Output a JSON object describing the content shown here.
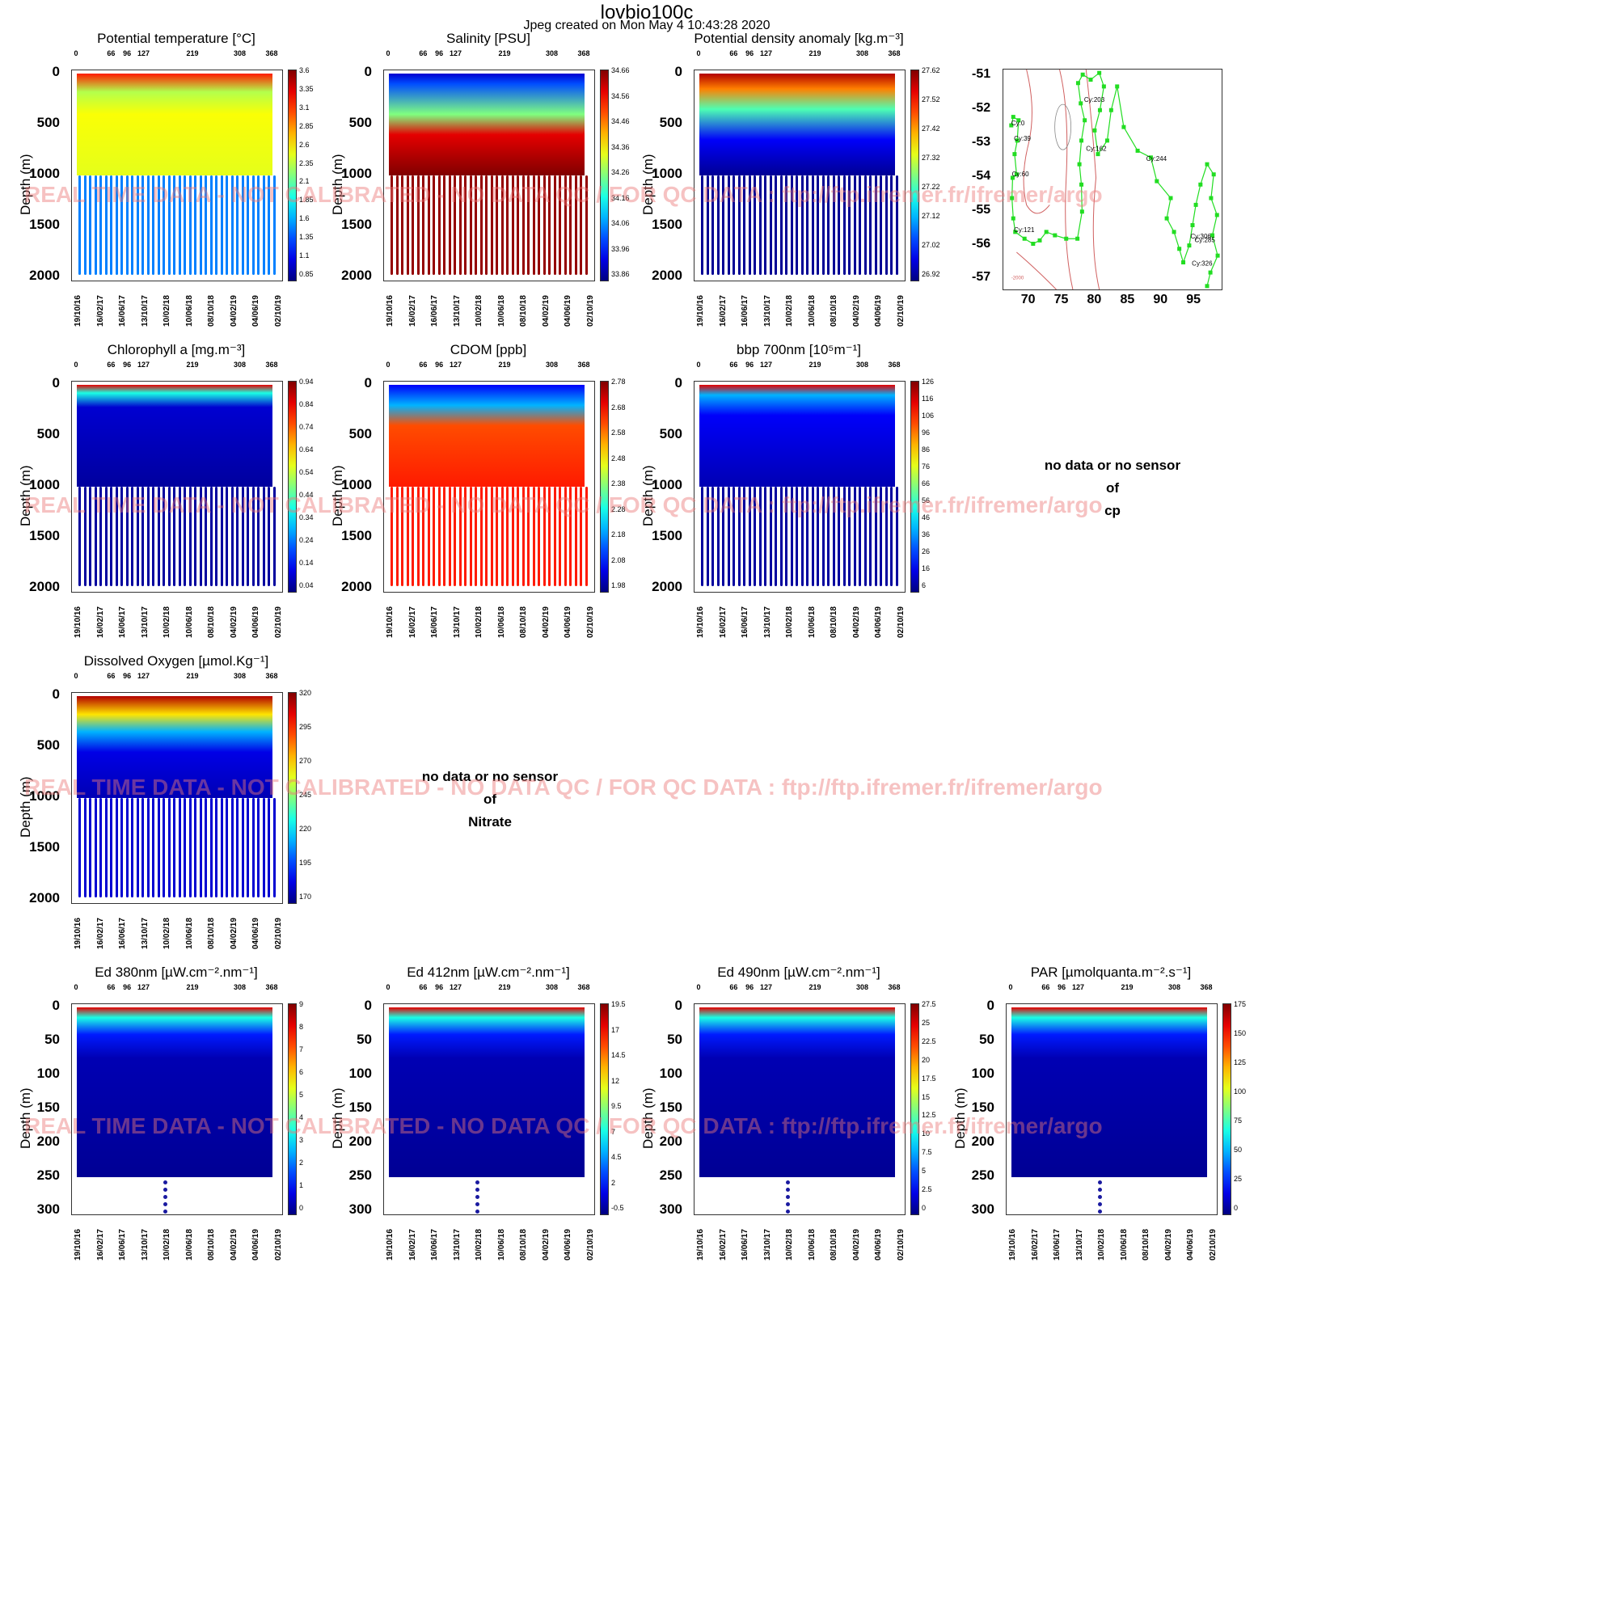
{
  "header": {
    "title": "lovbio100c",
    "subtitle": "Jpeg created on  Mon May  4 10:43:28 2020"
  },
  "watermark": "REAL TIME DATA - NOT CALIBRATED - NO DATA QC   /  FOR QC DATA : ftp://ftp.ifremer.fr/ifremer/argo",
  "axes": {
    "ylabel": "Depth (m)",
    "cycle_ticks": [
      "0",
      "66",
      "96",
      "127",
      "219",
      "308",
      "368"
    ],
    "date_ticks": [
      "19/10/16",
      "16/02/17",
      "16/06/17",
      "13/10/17",
      "10/02/18",
      "10/06/18",
      "08/10/18",
      "04/02/19",
      "04/06/19",
      "02/10/19"
    ],
    "deep_depth_ticks": [
      "0",
      "500",
      "1000",
      "1500",
      "2000"
    ],
    "shallow_depth_ticks": [
      "0",
      "50",
      "100",
      "150",
      "200",
      "250",
      "300"
    ]
  },
  "nodata": {
    "cp": [
      "no data or no sensor",
      "of",
      "cp"
    ],
    "nitrate": [
      "no data or no sensor",
      "of",
      "Nitrate"
    ]
  },
  "map": {
    "x_ticks": [
      "70",
      "75",
      "80",
      "85",
      "90",
      "95"
    ],
    "y_ticks": [
      "-51",
      "-52",
      "-53",
      "-54",
      "-55",
      "-56",
      "-57"
    ],
    "contour_label": "-2000",
    "cycle_labels": [
      {
        "text": "Cy:0",
        "lon": 67.2,
        "lat": -52.45
      },
      {
        "text": "Cy:39",
        "lon": 67.6,
        "lat": -52.9
      },
      {
        "text": "Cy:60",
        "lon": 67.3,
        "lat": -53.95
      },
      {
        "text": "Cy:121",
        "lon": 67.6,
        "lat": -55.6
      },
      {
        "text": "Cy:203",
        "lon": 78.2,
        "lat": -51.75
      },
      {
        "text": "Cy:162",
        "lon": 78.5,
        "lat": -53.2
      },
      {
        "text": "Cy:244",
        "lon": 87.6,
        "lat": -53.5
      },
      {
        "text": "Cy:306",
        "lon": 94.3,
        "lat": -55.8
      },
      {
        "text": "Cy:285",
        "lon": 94.9,
        "lat": -55.9
      },
      {
        "text": "Cy:326",
        "lon": 94.5,
        "lat": -56.6
      }
    ]
  },
  "chart_data": [
    {
      "id": "temp",
      "type": "heatmap",
      "title": "Potential temperature [°C]",
      "ylabel": "Depth (m)",
      "ylim": [
        2000,
        0
      ],
      "colorbar": [
        "3.6",
        "3.35",
        "3.1",
        "2.85",
        "2.6",
        "2.35",
        "2.1",
        "1.85",
        "1.6",
        "1.35",
        "1.1",
        "0.85"
      ]
    },
    {
      "id": "sal",
      "type": "heatmap",
      "title": "Salinity [PSU]",
      "ylabel": "Depth (m)",
      "ylim": [
        2000,
        0
      ],
      "colorbar": [
        "34.66",
        "34.56",
        "34.46",
        "34.36",
        "34.26",
        "34.16",
        "34.06",
        "33.96",
        "33.86"
      ]
    },
    {
      "id": "dens",
      "type": "heatmap",
      "title": "Potential density anomaly [kg.m⁻³]",
      "ylabel": "Depth (m)",
      "ylim": [
        2000,
        0
      ],
      "colorbar": [
        "27.62",
        "27.52",
        "27.42",
        "27.32",
        "27.22",
        "27.12",
        "27.02",
        "26.92"
      ]
    },
    {
      "id": "chl",
      "type": "heatmap",
      "title": "Chlorophyll a [mg.m⁻³]",
      "ylabel": "Depth (m)",
      "ylim": [
        2000,
        0
      ],
      "colorbar": [
        "0.94",
        "0.84",
        "0.74",
        "0.64",
        "0.54",
        "0.44",
        "0.34",
        "0.24",
        "0.14",
        "0.04"
      ]
    },
    {
      "id": "cdom",
      "type": "heatmap",
      "title": "CDOM  [ppb]",
      "ylabel": "Depth (m)",
      "ylim": [
        2000,
        0
      ],
      "colorbar": [
        "2.78",
        "2.68",
        "2.58",
        "2.48",
        "2.38",
        "2.28",
        "2.18",
        "2.08",
        "1.98"
      ]
    },
    {
      "id": "bbp",
      "type": "heatmap",
      "title": "bbp 700nm [10⁵m⁻¹]",
      "ylabel": "Depth (m)",
      "ylim": [
        2000,
        0
      ],
      "colorbar": [
        "126",
        "116",
        "106",
        "96",
        "86",
        "76",
        "66",
        "56",
        "46",
        "36",
        "26",
        "16",
        "6"
      ]
    },
    {
      "id": "oxy",
      "type": "heatmap",
      "title": "Dissolved Oxygen [µmol.Kg⁻¹]",
      "ylabel": "Depth (m)",
      "ylim": [
        2000,
        0
      ],
      "colorbar": [
        "320",
        "295",
        "270",
        "245",
        "220",
        "195",
        "170"
      ]
    },
    {
      "id": "ed380",
      "type": "heatmap",
      "title": "Ed 380nm [µW.cm⁻².nm⁻¹]",
      "ylabel": "Depth (m)",
      "ylim": [
        300,
        0
      ],
      "colorbar": [
        "9",
        "8",
        "7",
        "6",
        "5",
        "4",
        "3",
        "2",
        "1",
        "0"
      ]
    },
    {
      "id": "ed412",
      "type": "heatmap",
      "title": "Ed 412nm [µW.cm⁻².nm⁻¹]",
      "ylabel": "Depth (m)",
      "ylim": [
        300,
        0
      ],
      "colorbar": [
        "19.5",
        "17",
        "14.5",
        "12",
        "9.5",
        "7",
        "4.5",
        "2",
        "-0.5"
      ]
    },
    {
      "id": "ed490",
      "type": "heatmap",
      "title": "Ed 490nm [µW.cm⁻².nm⁻¹]",
      "ylabel": "Depth (m)",
      "ylim": [
        300,
        0
      ],
      "colorbar": [
        "27.5",
        "25",
        "22.5",
        "20",
        "17.5",
        "15",
        "12.5",
        "10",
        "7.5",
        "5",
        "2.5",
        "0"
      ]
    },
    {
      "id": "par",
      "type": "heatmap",
      "title": "PAR [µmolquanta.m⁻².s⁻¹]",
      "ylabel": "Depth (m)",
      "ylim": [
        300,
        0
      ],
      "colorbar": [
        "175",
        "150",
        "125",
        "100",
        "75",
        "50",
        "25",
        "0"
      ]
    },
    {
      "id": "traj",
      "type": "line",
      "title": "",
      "xlim": [
        66,
        99
      ],
      "ylim": [
        -57.3,
        -50.8
      ],
      "trajectory": [
        [
          67.2,
          -52.45
        ],
        [
          67.5,
          -52.2
        ],
        [
          68.3,
          -52.3
        ],
        [
          68.1,
          -52.9
        ],
        [
          67.7,
          -53.3
        ],
        [
          68.0,
          -53.9
        ],
        [
          67.4,
          -54.0
        ],
        [
          67.3,
          -54.6
        ],
        [
          67.5,
          -55.2
        ],
        [
          67.8,
          -55.6
        ],
        [
          69.2,
          -55.8
        ],
        [
          70.5,
          -55.95
        ],
        [
          71.5,
          -55.85
        ],
        [
          72.5,
          -55.6
        ],
        [
          73.8,
          -55.7
        ],
        [
          75.5,
          -55.8
        ],
        [
          77.2,
          -55.8
        ],
        [
          77.9,
          -55.0
        ],
        [
          77.8,
          -54.2
        ],
        [
          77.5,
          -53.6
        ],
        [
          77.8,
          -52.9
        ],
        [
          78.3,
          -52.3
        ],
        [
          77.7,
          -51.8
        ],
        [
          77.3,
          -51.2
        ],
        [
          78.0,
          -50.95
        ],
        [
          79.2,
          -51.1
        ],
        [
          80.5,
          -50.9
        ],
        [
          81.2,
          -51.3
        ],
        [
          80.6,
          -52.0
        ],
        [
          79.8,
          -52.6
        ],
        [
          80.3,
          -53.3
        ],
        [
          81.7,
          -52.9
        ],
        [
          82.3,
          -52.0
        ],
        [
          83.2,
          -51.3
        ],
        [
          84.2,
          -52.5
        ],
        [
          86.3,
          -53.2
        ],
        [
          88.3,
          -53.4
        ],
        [
          89.2,
          -54.1
        ],
        [
          91.3,
          -54.6
        ],
        [
          90.7,
          -55.2
        ],
        [
          91.8,
          -55.6
        ],
        [
          92.6,
          -56.1
        ],
        [
          93.2,
          -56.5
        ],
        [
          94.1,
          -56.0
        ],
        [
          94.6,
          -55.4
        ],
        [
          95.1,
          -54.8
        ],
        [
          95.8,
          -54.2
        ],
        [
          96.8,
          -53.6
        ],
        [
          97.8,
          -53.9
        ],
        [
          97.4,
          -54.6
        ],
        [
          98.3,
          -55.1
        ],
        [
          97.6,
          -55.7
        ],
        [
          98.4,
          -56.3
        ],
        [
          97.3,
          -56.8
        ],
        [
          96.8,
          -57.2
        ]
      ]
    }
  ]
}
